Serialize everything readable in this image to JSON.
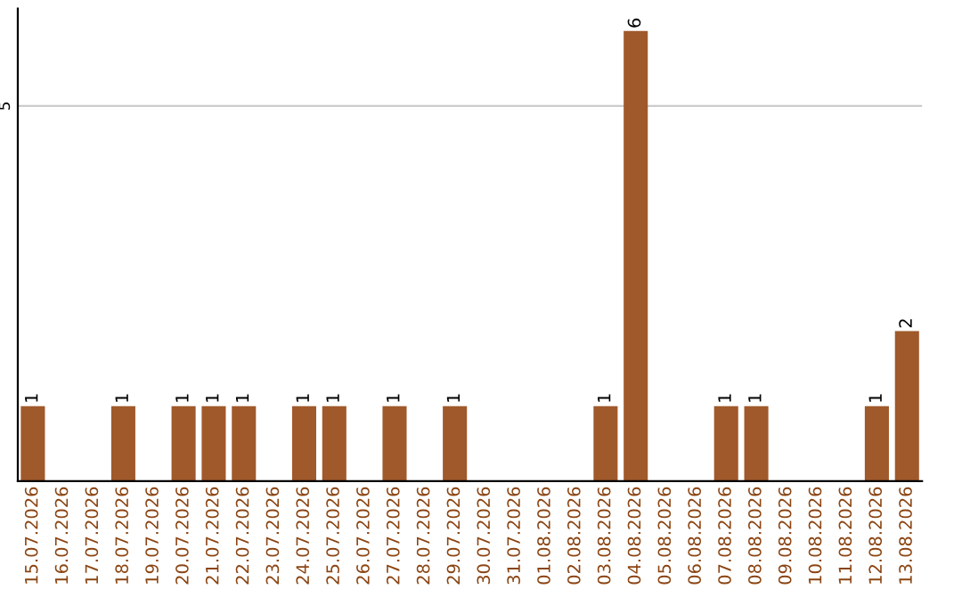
{
  "chart_data": {
    "type": "bar",
    "categories": [
      "15.07.2026",
      "16.07.2026",
      "17.07.2026",
      "18.07.2026",
      "19.07.2026",
      "20.07.2026",
      "21.07.2026",
      "22.07.2026",
      "23.07.2026",
      "24.07.2026",
      "25.07.2026",
      "26.07.2026",
      "27.07.2026",
      "28.07.2026",
      "29.07.2026",
      "30.07.2026",
      "31.07.2026",
      "01.08.2026",
      "02.08.2026",
      "03.08.2026",
      "04.08.2026",
      "05.08.2026",
      "06.08.2026",
      "07.08.2026",
      "08.08.2026",
      "09.08.2026",
      "10.08.2026",
      "11.08.2026",
      "12.08.2026",
      "13.08.2026"
    ],
    "values": [
      1,
      0,
      0,
      1,
      0,
      1,
      1,
      1,
      0,
      1,
      1,
      0,
      1,
      0,
      1,
      0,
      0,
      0,
      0,
      1,
      6,
      0,
      0,
      1,
      1,
      0,
      0,
      0,
      1,
      2
    ],
    "value_labels": [
      "1",
      null,
      null,
      "1",
      null,
      "1",
      "1",
      "1",
      null,
      "1",
      "1",
      null,
      "1",
      null,
      "1",
      null,
      null,
      null,
      null,
      "1",
      "6",
      null,
      null,
      "1",
      "1",
      null,
      null,
      null,
      "1",
      "2"
    ],
    "color": "#a0592a",
    "ylim": [
      0,
      6.3
    ],
    "yticks": [
      5
    ],
    "grid": "y"
  }
}
